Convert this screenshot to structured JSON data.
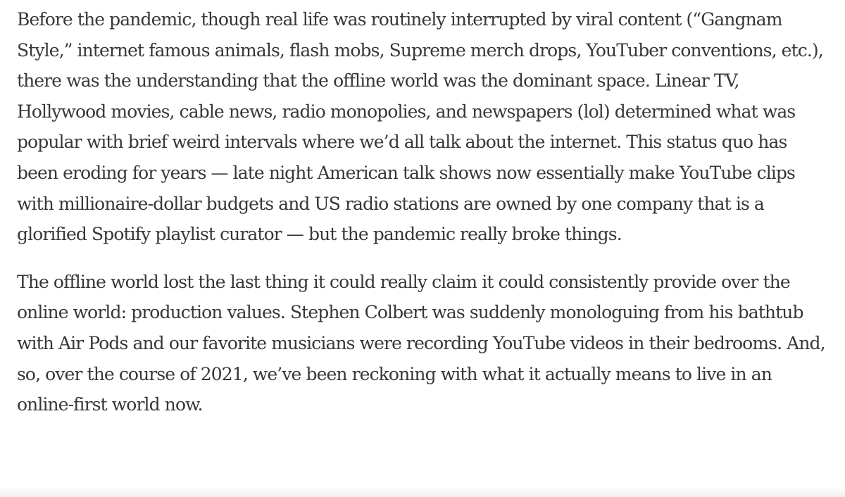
{
  "article": {
    "paragraphs": [
      "Before the pandemic, though real life was routinely interrupted by viral content (“Gangnam Style,” internet famous animals, flash mobs, Supreme merch drops, YouTuber conventions, etc.), there was the understanding that the offline world was the dominant space. Linear TV, Hollywood movies, cable news, radio monopolies, and newspapers (lol) determined what was popular with brief weird intervals where we’d all talk about the internet. This status quo has been eroding for years — late night American talk shows now essentially make YouTube clips with millionaire-dollar budgets and US radio stations are owned by one company that is a glorified Spotify playlist curator — but the pandemic really broke things.",
      "The offline world lost the last thing it could really claim it could consistently provide over the online world: production values. Stephen Colbert was suddenly monologuing from his bathtub with Air Pods and our favorite musicians were recording YouTube videos in their bedrooms. And, so, over the course of 2021, we’ve been reckoning with what it actually means to live in an online-first world now."
    ]
  },
  "colors": {
    "text": "#363737",
    "background": "#ffffff"
  }
}
